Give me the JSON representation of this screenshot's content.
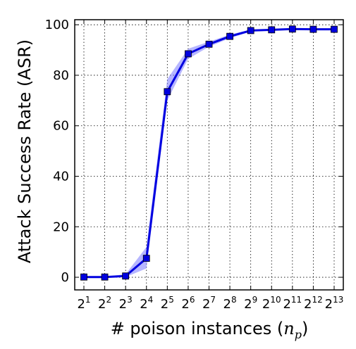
{
  "chart_data": {
    "type": "line",
    "title": "",
    "xlabel": "# poison instances (n_p)",
    "ylabel": "Attack Success Rate (ASR)",
    "x_scale": "log2",
    "x": [
      2,
      4,
      8,
      16,
      32,
      64,
      128,
      256,
      512,
      1024,
      2048,
      4096,
      8192
    ],
    "x_tick_labels": [
      {
        "base": "2",
        "exp": "1"
      },
      {
        "base": "2",
        "exp": "2"
      },
      {
        "base": "2",
        "exp": "3"
      },
      {
        "base": "2",
        "exp": "4"
      },
      {
        "base": "2",
        "exp": "5"
      },
      {
        "base": "2",
        "exp": "6"
      },
      {
        "base": "2",
        "exp": "7"
      },
      {
        "base": "2",
        "exp": "8"
      },
      {
        "base": "2",
        "exp": "9"
      },
      {
        "base": "2",
        "exp": "10"
      },
      {
        "base": "2",
        "exp": "11"
      },
      {
        "base": "2",
        "exp": "12"
      },
      {
        "base": "2",
        "exp": "13"
      }
    ],
    "y_ticks": [
      0,
      20,
      40,
      60,
      80,
      100
    ],
    "ylim": [
      -5,
      102
    ],
    "grid": true,
    "series": [
      {
        "color": "#0000e0",
        "band_color": "#7a7aff",
        "marker": "square",
        "values": [
          0.1,
          0.1,
          0.5,
          7.5,
          73.5,
          88.5,
          92.3,
          95.4,
          97.7,
          98.0,
          98.3,
          98.2,
          98.2
        ],
        "lower": [
          0.0,
          0.0,
          0.1,
          3.5,
          70.0,
          86.5,
          91.3,
          94.7,
          97.3,
          97.7,
          98.0,
          97.9,
          97.9
        ],
        "upper": [
          0.3,
          0.3,
          1.2,
          12.0,
          78.5,
          90.5,
          93.3,
          96.1,
          98.1,
          98.3,
          98.6,
          98.5,
          98.5
        ]
      }
    ]
  },
  "axis_titles": {
    "x_main": "# poison instances (",
    "x_var": "n",
    "x_sub": "p",
    "x_close": ")",
    "y": "Attack Success Rate (ASR)"
  }
}
